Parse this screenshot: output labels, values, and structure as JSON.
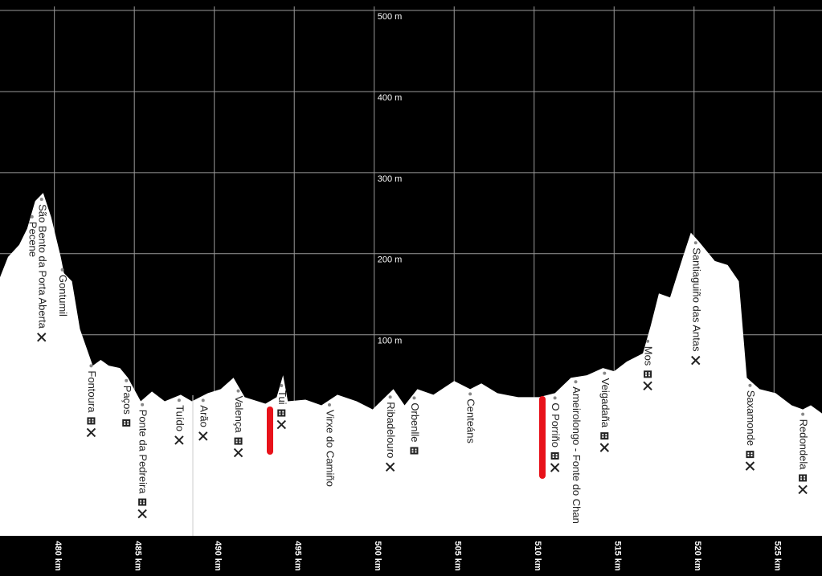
{
  "chart_data": {
    "type": "area",
    "x": [
      476.6,
      477.1,
      477.8,
      478.3,
      478.8,
      479.3,
      479.8,
      480.4,
      480.6,
      481.1,
      481.6,
      482.4,
      482.9,
      483.4,
      484.1,
      484.6,
      485.4,
      486.1,
      486.9,
      487.9,
      488.6,
      489.6,
      490.4,
      491.2,
      491.9,
      493.2,
      493.9,
      494.3,
      494.6,
      495.7,
      496.7,
      497.7,
      498.9,
      499.9,
      501.2,
      501.9,
      502.7,
      503.7,
      505.0,
      506.0,
      506.7,
      507.7,
      509.0,
      510.3,
      511.3,
      512.3,
      513.3,
      514.3,
      515.0,
      515.8,
      516.8,
      517.3,
      517.8,
      518.5,
      519.3,
      519.8,
      520.3,
      521.3,
      522.1,
      522.8,
      523.3,
      524.1,
      525.1,
      526.1,
      526.8,
      527.3,
      528.0
    ],
    "series": [
      {
        "color": "#ffffff",
        "values": [
          171,
          196,
          211,
          231,
          265,
          275,
          245,
          196,
          176,
          166,
          107,
          62,
          69,
          62,
          59,
          47,
          18,
          30,
          18,
          26,
          18,
          28,
          33,
          47,
          23,
          15,
          23,
          50,
          18,
          20,
          13,
          26,
          18,
          8,
          33,
          13,
          33,
          26,
          43,
          33,
          40,
          28,
          23,
          23,
          28,
          47,
          50,
          59,
          55,
          67,
          77,
          112,
          151,
          146,
          196,
          226,
          215,
          191,
          186,
          166,
          47,
          33,
          28,
          13,
          8,
          13,
          3
        ]
      }
    ],
    "xlim": [
      476.6,
      528
    ],
    "ylim": [
      -148,
      505
    ],
    "xticks": [
      {
        "value": 480,
        "label": "480 km"
      },
      {
        "value": 485,
        "label": "485 km"
      },
      {
        "value": 490,
        "label": "490 km"
      },
      {
        "value": 495,
        "label": "495 km"
      },
      {
        "value": 500,
        "label": "500 km"
      },
      {
        "value": 505,
        "label": "505 km"
      },
      {
        "value": 510,
        "label": "510 km"
      },
      {
        "value": 515,
        "label": "515 km"
      },
      {
        "value": 520,
        "label": "520 km"
      },
      {
        "value": 525,
        "label": "525 km"
      }
    ],
    "yticks": [
      {
        "value": 100,
        "label": "100 m"
      },
      {
        "value": 200,
        "label": "200 m"
      },
      {
        "value": 300,
        "label": "300 m"
      },
      {
        "value": 400,
        "label": "400 m"
      },
      {
        "value": 500,
        "label": "500 m"
      }
    ],
    "grid": true,
    "waypoints": [
      {
        "name": "Pecene",
        "km": 478.6,
        "lodging": false,
        "food": false
      },
      {
        "name": "São Bento da Porta Aberta",
        "km": 479.2,
        "lodging": false,
        "food": true
      },
      {
        "name": "Gontumil",
        "km": 480.5,
        "lodging": false,
        "food": false
      },
      {
        "name": "Fontoura",
        "km": 482.3,
        "lodging": true,
        "food": true
      },
      {
        "name": "Paços",
        "km": 484.5,
        "lodging": true,
        "food": false
      },
      {
        "name": "Ponte da Pedreira",
        "km": 485.5,
        "lodging": true,
        "food": true
      },
      {
        "name": "Tuído",
        "km": 487.8,
        "lodging": false,
        "food": true
      },
      {
        "name": "Arão",
        "km": 489.3,
        "lodging": false,
        "food": true
      },
      {
        "name": "Valença",
        "km": 491.5,
        "lodging": true,
        "food": true
      },
      {
        "name": "Tui",
        "km": 494.2,
        "lodging": true,
        "food": true
      },
      {
        "name": "Virxe do Camiño",
        "km": 497.2,
        "lodging": false,
        "food": false
      },
      {
        "name": "Ribadelouro",
        "km": 501.0,
        "lodging": false,
        "food": true
      },
      {
        "name": "Orbenlle",
        "km": 502.5,
        "lodging": true,
        "food": false
      },
      {
        "name": "Centeáns",
        "km": 506.0,
        "lodging": false,
        "food": false
      },
      {
        "name": "O Porriño",
        "km": 511.3,
        "lodging": true,
        "food": true
      },
      {
        "name": "Ameirolongo - Fonte do Chan",
        "km": 512.6,
        "lodging": false,
        "food": false
      },
      {
        "name": "Veigadaña",
        "km": 514.4,
        "lodging": true,
        "food": true
      },
      {
        "name": "Mos",
        "km": 517.1,
        "lodging": true,
        "food": true
      },
      {
        "name": "Santiaguiño das Antas",
        "km": 520.1,
        "lodging": false,
        "food": true
      },
      {
        "name": "Saxamonde",
        "km": 523.5,
        "lodging": true,
        "food": true
      },
      {
        "name": "Redondela",
        "km": 526.8,
        "lodging": true,
        "food": true
      }
    ]
  }
}
